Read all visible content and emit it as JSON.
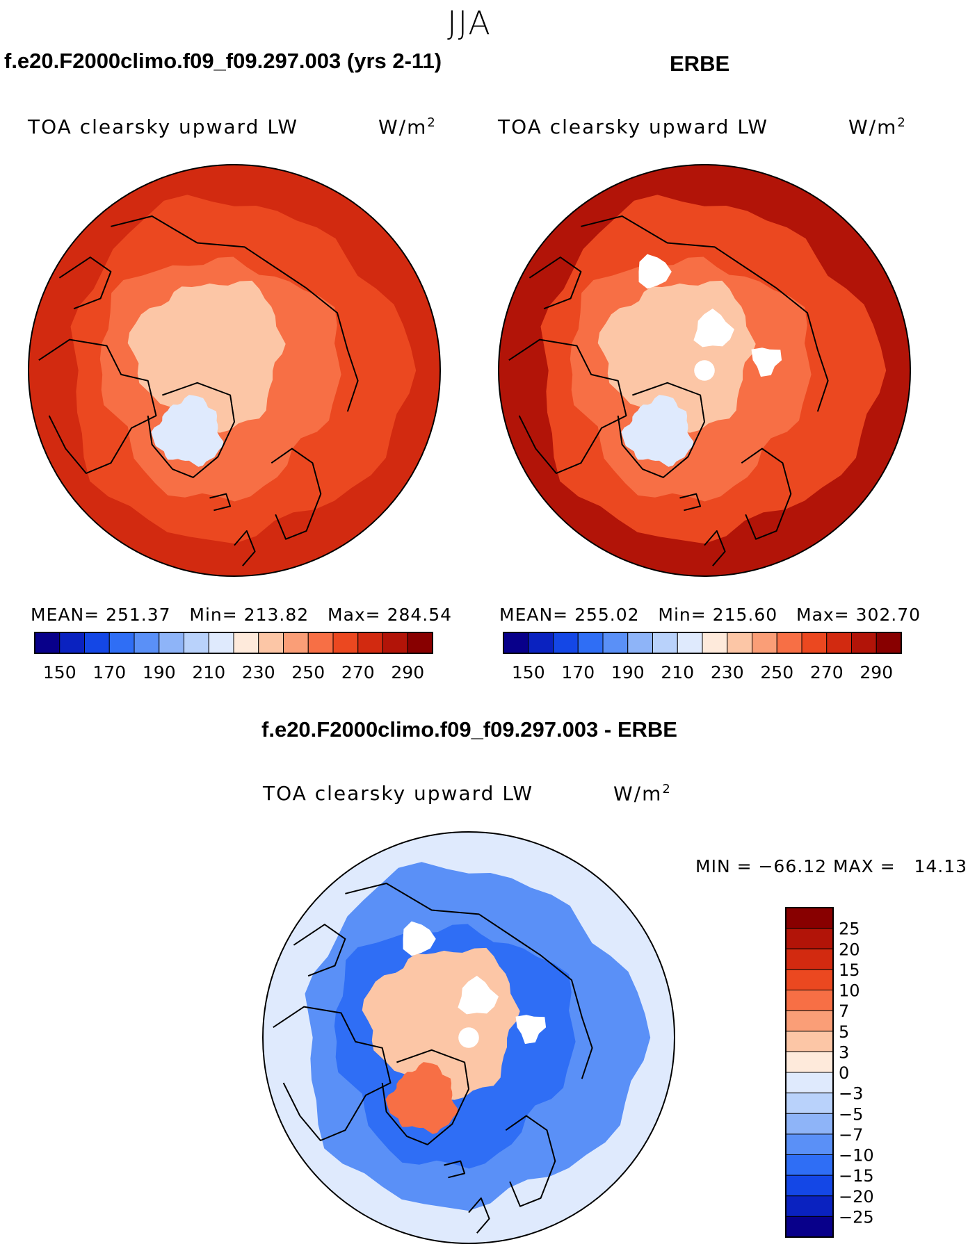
{
  "figure": {
    "season_title": "JJA",
    "left_case_title": "f.e20.F2000climo.f09_f09.297.003 (yrs 2-11)",
    "right_case_title": "ERBE",
    "diff_title": "f.e20.F2000climo.f09_f09.297.003 - ERBE"
  },
  "colors": {
    "abs_scale": [
      "#08008a",
      "#0a22c0",
      "#1447e6",
      "#2f6ef5",
      "#5a90f7",
      "#8eb4f8",
      "#b9d2fb",
      "#dfeafd",
      "#feeadb",
      "#fcc6a6",
      "#fa9e77",
      "#f76f45",
      "#eb4820",
      "#d22a10",
      "#b21408",
      "#880000"
    ],
    "diff_scale": [
      "#08008a",
      "#0a22c0",
      "#1447e6",
      "#2f6ef5",
      "#5a90f7",
      "#8eb4f8",
      "#b9d2fb",
      "#dfeafd",
      "#feeadb",
      "#fcc6a6",
      "#fa9e77",
      "#f76f45",
      "#eb4820",
      "#d22a10",
      "#b21408",
      "#880000"
    ],
    "missing": "#ffffff"
  },
  "chart_data": [
    {
      "type": "heatmap",
      "projection": "north-polar-stereographic",
      "panel": "model",
      "title": "f.e20.F2000climo.f09_f09.297.003 (yrs 2-11)",
      "variable_label": "TOA clearsky upward LW",
      "units": "W/m",
      "units_exp": "2",
      "stats": {
        "mean_label": "MEAN=",
        "mean": "251.37",
        "min_label": "Min=",
        "min": "213.82",
        "max_label": "Max=",
        "max": "284.54"
      },
      "colorbar_ticks": [
        "150",
        "170",
        "190",
        "210",
        "230",
        "250",
        "270",
        "290"
      ],
      "field_levels_wm2": {
        "outer_ring": 275,
        "mid_latitudes": 262,
        "land_ring": 250,
        "arctic_ocean": 236,
        "greenland_low": 215
      }
    },
    {
      "type": "heatmap",
      "projection": "north-polar-stereographic",
      "panel": "observations",
      "title": "ERBE",
      "variable_label": "TOA clearsky upward LW",
      "units": "W/m",
      "units_exp": "2",
      "stats": {
        "mean_label": "MEAN=",
        "mean": "255.02",
        "min_label": "Min=",
        "min": "215.60",
        "max_label": "Max=",
        "max": "302.70"
      },
      "colorbar_ticks": [
        "150",
        "170",
        "190",
        "210",
        "230",
        "250",
        "270",
        "290"
      ],
      "field_levels_wm2": {
        "outer_ring": 285,
        "mid_latitudes": 268,
        "land_ring": 252,
        "arctic_ocean": 236,
        "greenland_low": 216
      }
    },
    {
      "type": "heatmap",
      "projection": "north-polar-stereographic",
      "panel": "difference",
      "title": "f.e20.F2000climo.f09_f09.297.003 - ERBE",
      "variable_label": "TOA clearsky upward LW",
      "units": "W/m",
      "units_exp": "2",
      "stats_text": "MIN = −66.12 MAX =   14.13",
      "colorbar_labels": [
        "25",
        "20",
        "15",
        "10",
        "7",
        "5",
        "3",
        "0",
        "−3",
        "−5",
        "−7",
        "−10",
        "−15",
        "−20",
        "−25"
      ],
      "field_levels_wm2": {
        "outer_ring": -2,
        "mid_latitudes": -8,
        "land_ring": -12,
        "arctic_ocean": 4,
        "greenland_low": 8
      }
    }
  ]
}
